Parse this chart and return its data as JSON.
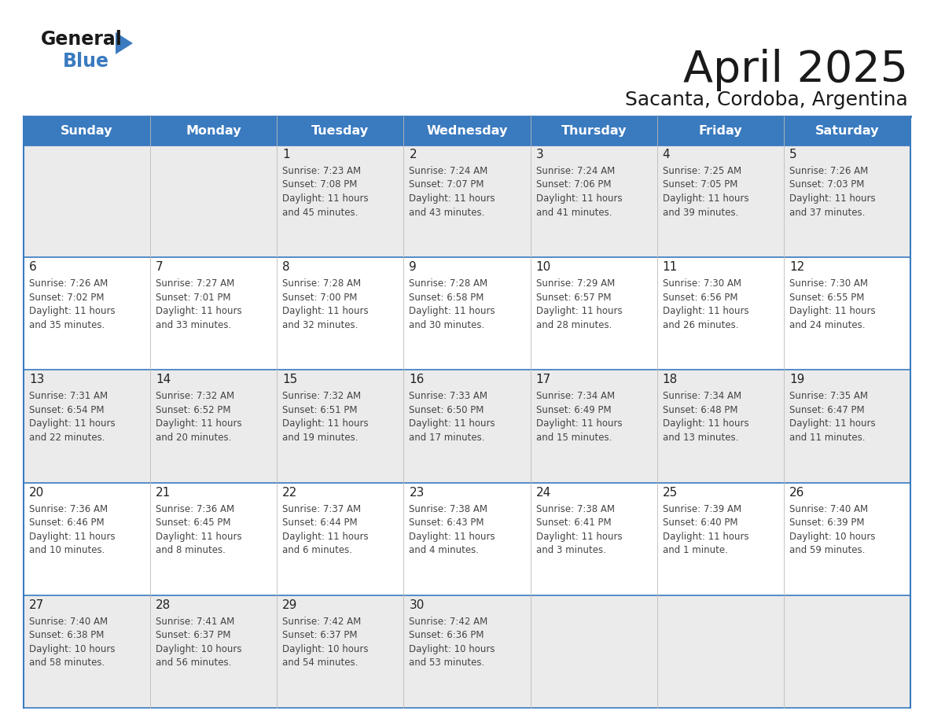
{
  "title": "April 2025",
  "subtitle": "Sacanta, Cordoba, Argentina",
  "header_color": "#3a7abf",
  "header_text_color": "#ffffff",
  "day_names": [
    "Sunday",
    "Monday",
    "Tuesday",
    "Wednesday",
    "Thursday",
    "Friday",
    "Saturday"
  ],
  "row_colors": [
    "#ebebeb",
    "#ffffff"
  ],
  "border_color": "#3a7abf",
  "cell_border_color": "#aaaaaa",
  "text_color": "#333333",
  "number_color": "#222222",
  "logo_general_color": "#1a1a1a",
  "logo_blue_color": "#3a7abf",
  "logo_triangle_color": "#3a7abf",
  "days": [
    {
      "day": 1,
      "col": 2,
      "row": 0,
      "sunrise": "7:23 AM",
      "sunset": "7:08 PM",
      "daylight_h": "11 hours",
      "daylight_m": "45 minutes."
    },
    {
      "day": 2,
      "col": 3,
      "row": 0,
      "sunrise": "7:24 AM",
      "sunset": "7:07 PM",
      "daylight_h": "11 hours",
      "daylight_m": "43 minutes."
    },
    {
      "day": 3,
      "col": 4,
      "row": 0,
      "sunrise": "7:24 AM",
      "sunset": "7:06 PM",
      "daylight_h": "11 hours",
      "daylight_m": "41 minutes."
    },
    {
      "day": 4,
      "col": 5,
      "row": 0,
      "sunrise": "7:25 AM",
      "sunset": "7:05 PM",
      "daylight_h": "11 hours",
      "daylight_m": "39 minutes."
    },
    {
      "day": 5,
      "col": 6,
      "row": 0,
      "sunrise": "7:26 AM",
      "sunset": "7:03 PM",
      "daylight_h": "11 hours",
      "daylight_m": "37 minutes."
    },
    {
      "day": 6,
      "col": 0,
      "row": 1,
      "sunrise": "7:26 AM",
      "sunset": "7:02 PM",
      "daylight_h": "11 hours",
      "daylight_m": "35 minutes."
    },
    {
      "day": 7,
      "col": 1,
      "row": 1,
      "sunrise": "7:27 AM",
      "sunset": "7:01 PM",
      "daylight_h": "11 hours",
      "daylight_m": "33 minutes."
    },
    {
      "day": 8,
      "col": 2,
      "row": 1,
      "sunrise": "7:28 AM",
      "sunset": "7:00 PM",
      "daylight_h": "11 hours",
      "daylight_m": "32 minutes."
    },
    {
      "day": 9,
      "col": 3,
      "row": 1,
      "sunrise": "7:28 AM",
      "sunset": "6:58 PM",
      "daylight_h": "11 hours",
      "daylight_m": "30 minutes."
    },
    {
      "day": 10,
      "col": 4,
      "row": 1,
      "sunrise": "7:29 AM",
      "sunset": "6:57 PM",
      "daylight_h": "11 hours",
      "daylight_m": "28 minutes."
    },
    {
      "day": 11,
      "col": 5,
      "row": 1,
      "sunrise": "7:30 AM",
      "sunset": "6:56 PM",
      "daylight_h": "11 hours",
      "daylight_m": "26 minutes."
    },
    {
      "day": 12,
      "col": 6,
      "row": 1,
      "sunrise": "7:30 AM",
      "sunset": "6:55 PM",
      "daylight_h": "11 hours",
      "daylight_m": "24 minutes."
    },
    {
      "day": 13,
      "col": 0,
      "row": 2,
      "sunrise": "7:31 AM",
      "sunset": "6:54 PM",
      "daylight_h": "11 hours",
      "daylight_m": "22 minutes."
    },
    {
      "day": 14,
      "col": 1,
      "row": 2,
      "sunrise": "7:32 AM",
      "sunset": "6:52 PM",
      "daylight_h": "11 hours",
      "daylight_m": "20 minutes."
    },
    {
      "day": 15,
      "col": 2,
      "row": 2,
      "sunrise": "7:32 AM",
      "sunset": "6:51 PM",
      "daylight_h": "11 hours",
      "daylight_m": "19 minutes."
    },
    {
      "day": 16,
      "col": 3,
      "row": 2,
      "sunrise": "7:33 AM",
      "sunset": "6:50 PM",
      "daylight_h": "11 hours",
      "daylight_m": "17 minutes."
    },
    {
      "day": 17,
      "col": 4,
      "row": 2,
      "sunrise": "7:34 AM",
      "sunset": "6:49 PM",
      "daylight_h": "11 hours",
      "daylight_m": "15 minutes."
    },
    {
      "day": 18,
      "col": 5,
      "row": 2,
      "sunrise": "7:34 AM",
      "sunset": "6:48 PM",
      "daylight_h": "11 hours",
      "daylight_m": "13 minutes."
    },
    {
      "day": 19,
      "col": 6,
      "row": 2,
      "sunrise": "7:35 AM",
      "sunset": "6:47 PM",
      "daylight_h": "11 hours",
      "daylight_m": "11 minutes."
    },
    {
      "day": 20,
      "col": 0,
      "row": 3,
      "sunrise": "7:36 AM",
      "sunset": "6:46 PM",
      "daylight_h": "11 hours",
      "daylight_m": "10 minutes."
    },
    {
      "day": 21,
      "col": 1,
      "row": 3,
      "sunrise": "7:36 AM",
      "sunset": "6:45 PM",
      "daylight_h": "11 hours",
      "daylight_m": "8 minutes."
    },
    {
      "day": 22,
      "col": 2,
      "row": 3,
      "sunrise": "7:37 AM",
      "sunset": "6:44 PM",
      "daylight_h": "11 hours",
      "daylight_m": "6 minutes."
    },
    {
      "day": 23,
      "col": 3,
      "row": 3,
      "sunrise": "7:38 AM",
      "sunset": "6:43 PM",
      "daylight_h": "11 hours",
      "daylight_m": "4 minutes."
    },
    {
      "day": 24,
      "col": 4,
      "row": 3,
      "sunrise": "7:38 AM",
      "sunset": "6:41 PM",
      "daylight_h": "11 hours",
      "daylight_m": "3 minutes."
    },
    {
      "day": 25,
      "col": 5,
      "row": 3,
      "sunrise": "7:39 AM",
      "sunset": "6:40 PM",
      "daylight_h": "11 hours",
      "daylight_m": "1 minute."
    },
    {
      "day": 26,
      "col": 6,
      "row": 3,
      "sunrise": "7:40 AM",
      "sunset": "6:39 PM",
      "daylight_h": "10 hours",
      "daylight_m": "59 minutes."
    },
    {
      "day": 27,
      "col": 0,
      "row": 4,
      "sunrise": "7:40 AM",
      "sunset": "6:38 PM",
      "daylight_h": "10 hours",
      "daylight_m": "58 minutes."
    },
    {
      "day": 28,
      "col": 1,
      "row": 4,
      "sunrise": "7:41 AM",
      "sunset": "6:37 PM",
      "daylight_h": "10 hours",
      "daylight_m": "56 minutes."
    },
    {
      "day": 29,
      "col": 2,
      "row": 4,
      "sunrise": "7:42 AM",
      "sunset": "6:37 PM",
      "daylight_h": "10 hours",
      "daylight_m": "54 minutes."
    },
    {
      "day": 30,
      "col": 3,
      "row": 4,
      "sunrise": "7:42 AM",
      "sunset": "6:36 PM",
      "daylight_h": "10 hours",
      "daylight_m": "53 minutes."
    }
  ]
}
